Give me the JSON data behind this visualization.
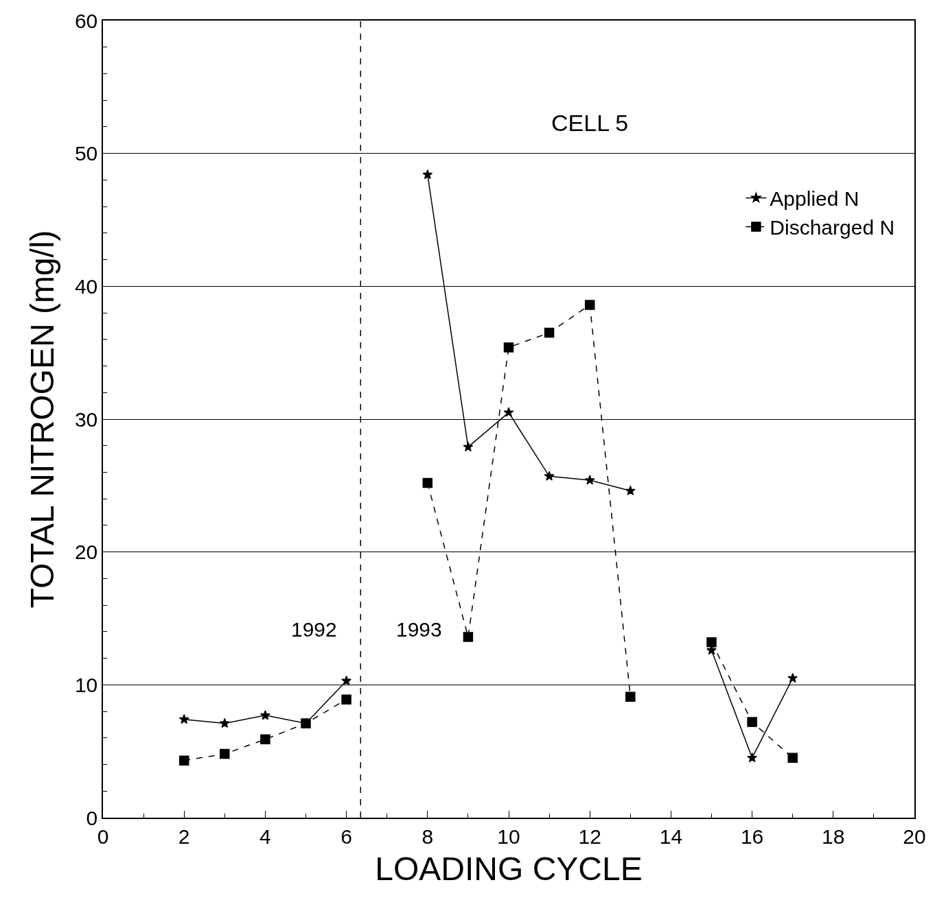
{
  "chart_data": {
    "type": "line",
    "xlabel": "LOADING CYCLE",
    "ylabel": "TOTAL NITROGEN (mg/l)",
    "x": [
      2,
      3,
      4,
      5,
      6,
      7,
      8,
      9,
      10,
      11,
      12,
      13,
      14,
      15,
      16,
      17
    ],
    "series": [
      {
        "name": "Applied N",
        "color": "#000000",
        "marker": "star",
        "line_style": "solid",
        "values": [
          7.4,
          7.1,
          7.7,
          7.1,
          10.3,
          null,
          48.4,
          27.9,
          30.5,
          25.7,
          25.4,
          24.6,
          null,
          12.6,
          4.5,
          10.5
        ]
      },
      {
        "name": "Discharged N",
        "color": "#000000",
        "marker": "square",
        "line_style": "dashed",
        "values": [
          4.3,
          4.8,
          5.9,
          7.1,
          8.9,
          null,
          25.2,
          13.6,
          35.4,
          36.5,
          38.6,
          9.1,
          null,
          13.2,
          7.2,
          4.5
        ]
      }
    ],
    "xlim": [
      0,
      20
    ],
    "xticks": [
      0,
      2,
      4,
      6,
      8,
      10,
      12,
      14,
      16,
      18,
      20
    ],
    "ylim": [
      0,
      60
    ],
    "yticks": [
      0,
      10,
      20,
      30,
      40,
      50,
      60
    ],
    "grid": "y",
    "legend": "top right",
    "ref_lines": [
      {
        "axis": "x",
        "value": 6.35,
        "line_style": "dashed",
        "color": "#000000"
      }
    ],
    "annotations": [
      "CELL 5",
      "1992",
      "1993"
    ]
  }
}
